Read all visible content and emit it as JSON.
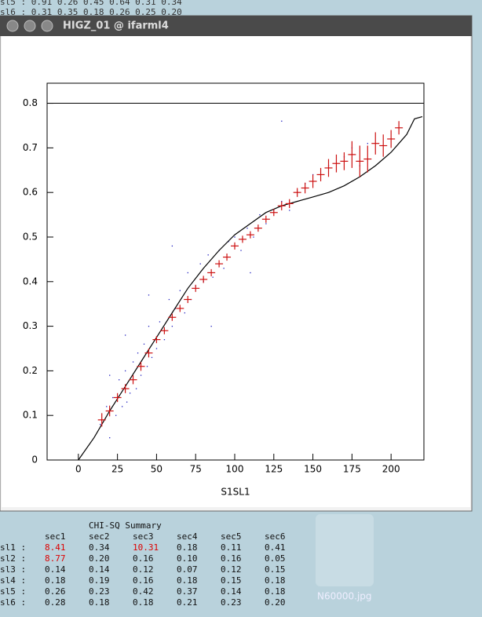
{
  "background_lines": [
    "sl5 :  0.91  0.26  0.45  0.64  0.31  0.34",
    "sl6 :  0.31  0.35  0.18  0.26  0.25  0.20"
  ],
  "background_labels": [
    "N60000.jpg"
  ],
  "window": {
    "title": "HIGZ_01 @ ifarml4"
  },
  "chart_data": {
    "type": "scatter",
    "xlabel": "S1SL1",
    "xlim": [
      -20,
      221
    ],
    "ylim": [
      0,
      0.845
    ],
    "xticks": [
      0,
      25,
      50,
      75,
      100,
      125,
      150,
      175,
      200
    ],
    "yticks": [
      0,
      0.1,
      0.2,
      0.3,
      0.4,
      0.5,
      0.6,
      0.7,
      0.8
    ],
    "hline": 0.8,
    "scatter": {
      "color": "#2020c0",
      "x": [
        14,
        18,
        20,
        22,
        24,
        26,
        28,
        30,
        31,
        33,
        35,
        37,
        38,
        40,
        42,
        44,
        45,
        47,
        50,
        52,
        55,
        58,
        60,
        62,
        65,
        68,
        70,
        72,
        75,
        78,
        80,
        83,
        86,
        90,
        93,
        96,
        100,
        104,
        108,
        112,
        116,
        120,
        125,
        130,
        135,
        140,
        145,
        150,
        160,
        170,
        175,
        180,
        185,
        130,
        60,
        85,
        30,
        20,
        45,
        110
      ],
      "y": [
        0.08,
        0.12,
        0.05,
        0.14,
        0.1,
        0.18,
        0.12,
        0.2,
        0.13,
        0.15,
        0.22,
        0.16,
        0.24,
        0.19,
        0.26,
        0.21,
        0.3,
        0.23,
        0.25,
        0.31,
        0.27,
        0.36,
        0.3,
        0.34,
        0.38,
        0.33,
        0.42,
        0.36,
        0.39,
        0.44,
        0.4,
        0.46,
        0.41,
        0.47,
        0.43,
        0.49,
        0.5,
        0.47,
        0.52,
        0.5,
        0.55,
        0.53,
        0.56,
        0.58,
        0.56,
        0.6,
        0.62,
        0.64,
        0.66,
        0.68,
        0.7,
        0.66,
        0.71,
        0.76,
        0.48,
        0.3,
        0.28,
        0.19,
        0.37,
        0.42
      ]
    },
    "profile": {
      "color": "#cc1010",
      "x": [
        15,
        20,
        25,
        30,
        35,
        40,
        45,
        50,
        55,
        60,
        65,
        70,
        75,
        80,
        85,
        90,
        95,
        100,
        105,
        110,
        115,
        120,
        125,
        130,
        135,
        140,
        145,
        150,
        155,
        160,
        165,
        170,
        175,
        180,
        185,
        190,
        195,
        200,
        205
      ],
      "values": [
        0.09,
        0.11,
        0.14,
        0.16,
        0.18,
        0.21,
        0.24,
        0.27,
        0.29,
        0.32,
        0.34,
        0.36,
        0.385,
        0.405,
        0.42,
        0.44,
        0.455,
        0.48,
        0.495,
        0.505,
        0.52,
        0.54,
        0.555,
        0.57,
        0.575,
        0.6,
        0.61,
        0.625,
        0.64,
        0.655,
        0.665,
        0.67,
        0.685,
        0.67,
        0.675,
        0.71,
        0.705,
        0.72,
        0.745
      ],
      "errors": [
        0.015,
        0.012,
        0.01,
        0.01,
        0.01,
        0.01,
        0.01,
        0.008,
        0.008,
        0.008,
        0.008,
        0.008,
        0.008,
        0.008,
        0.008,
        0.008,
        0.008,
        0.008,
        0.008,
        0.008,
        0.008,
        0.008,
        0.008,
        0.01,
        0.01,
        0.01,
        0.012,
        0.015,
        0.015,
        0.02,
        0.02,
        0.02,
        0.03,
        0.035,
        0.03,
        0.025,
        0.025,
        0.02,
        0.015
      ]
    },
    "curve": {
      "color": "#000000",
      "x": [
        0,
        10,
        20,
        30,
        40,
        50,
        60,
        70,
        80,
        90,
        100,
        110,
        120,
        130,
        140,
        150,
        160,
        170,
        180,
        190,
        200,
        210,
        215,
        220
      ],
      "values": [
        0,
        0.05,
        0.11,
        0.165,
        0.22,
        0.275,
        0.33,
        0.385,
        0.43,
        0.47,
        0.505,
        0.53,
        0.555,
        0.57,
        0.58,
        0.59,
        0.6,
        0.615,
        0.635,
        0.66,
        0.69,
        0.73,
        0.765,
        0.77
      ]
    }
  },
  "table": {
    "title": "CHI-SQ Summary",
    "header": [
      "sec1",
      "sec2",
      "sec3",
      "sec4",
      "sec5",
      "sec6"
    ],
    "rows": [
      {
        "label": "sl1 :",
        "cells": [
          {
            "text": "8.41",
            "color": "#dd0000"
          },
          {
            "text": "0.34"
          },
          {
            "text": "10.31",
            "color": "#dd0000"
          },
          {
            "text": "0.18"
          },
          {
            "text": "0.11"
          },
          {
            "text": "0.41"
          }
        ]
      },
      {
        "label": "sl2 :",
        "cells": [
          {
            "text": "8.77",
            "color": "#dd0000"
          },
          {
            "text": "0.20"
          },
          {
            "text": "0.16"
          },
          {
            "text": "0.10"
          },
          {
            "text": "0.16"
          },
          {
            "text": "0.05"
          }
        ]
      },
      {
        "label": "sl3 :",
        "cells": [
          {
            "text": "0.14"
          },
          {
            "text": "0.14"
          },
          {
            "text": "0.12"
          },
          {
            "text": "0.07"
          },
          {
            "text": "0.12"
          },
          {
            "text": "0.15"
          }
        ]
      },
      {
        "label": "sl4 :",
        "cells": [
          {
            "text": "0.18"
          },
          {
            "text": "0.19"
          },
          {
            "text": "0.16"
          },
          {
            "text": "0.18"
          },
          {
            "text": "0.15"
          },
          {
            "text": "0.18"
          }
        ]
      },
      {
        "label": "sl5 :",
        "cells": [
          {
            "text": "0.26"
          },
          {
            "text": "0.23"
          },
          {
            "text": "0.42"
          },
          {
            "text": "0.37"
          },
          {
            "text": "0.14"
          },
          {
            "text": "0.18"
          }
        ]
      },
      {
        "label": "sl6 :",
        "cells": [
          {
            "text": "0.28"
          },
          {
            "text": "0.18"
          },
          {
            "text": "0.18"
          },
          {
            "text": "0.21"
          },
          {
            "text": "0.23"
          },
          {
            "text": "0.20"
          }
        ]
      }
    ]
  }
}
